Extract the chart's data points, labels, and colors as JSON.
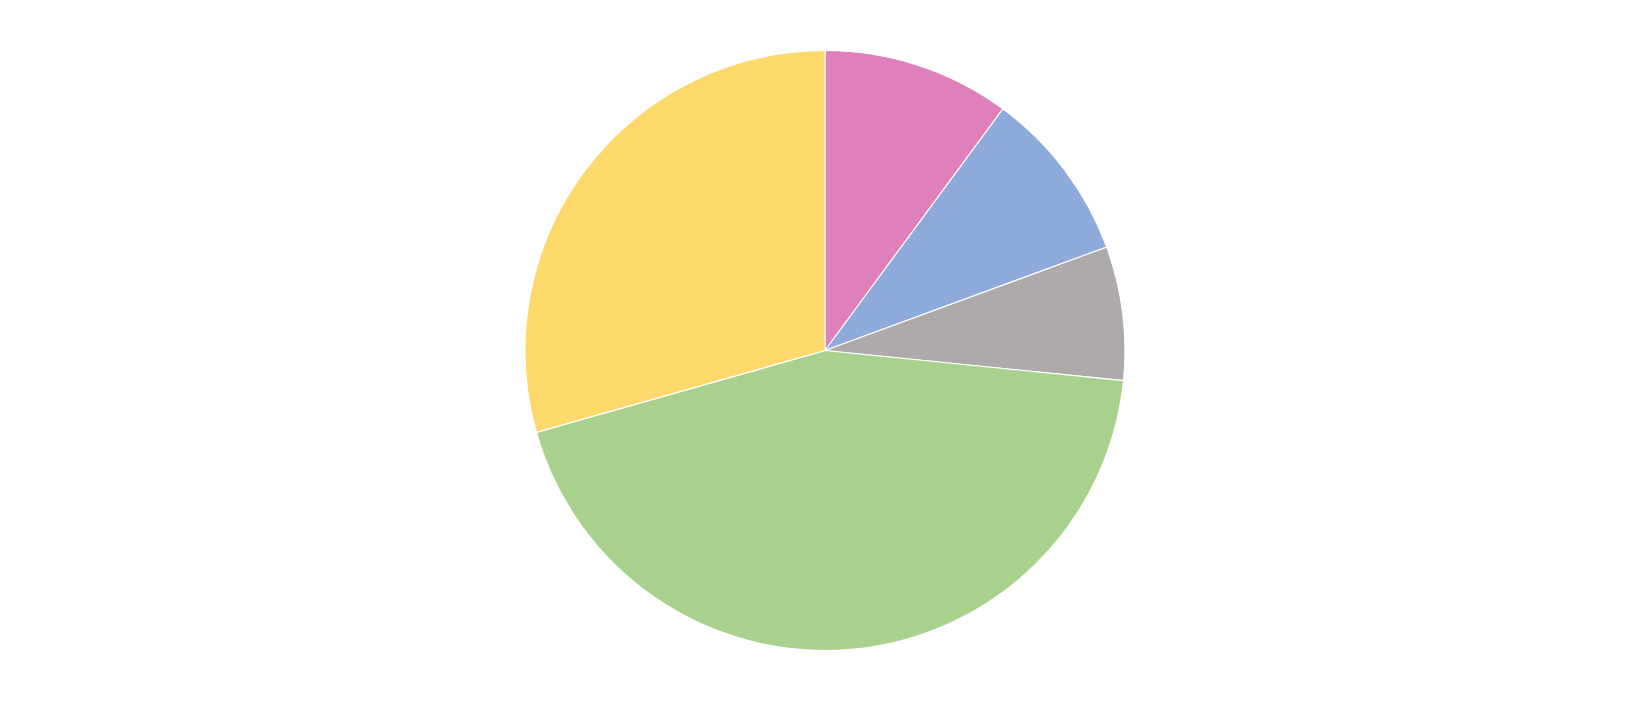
{
  "chart_data": {
    "type": "pie",
    "categories": [
      null,
      null,
      null,
      null,
      null
    ],
    "values": [
      10.1,
      9.3,
      7.2,
      44.0,
      29.4
    ],
    "colors": [
      "#df7fbb",
      "#8eaadb",
      "#aeaaa9",
      "#a9d18e",
      "#fdd96b"
    ]
  }
}
